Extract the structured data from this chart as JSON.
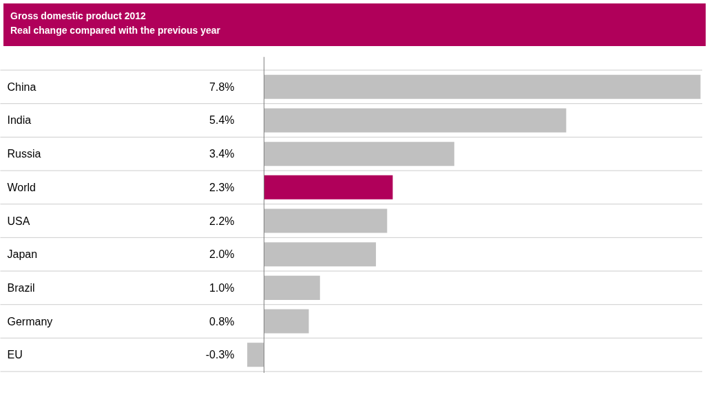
{
  "chart_data": {
    "type": "bar",
    "orientation": "horizontal",
    "title": "Gross domestic product 2012",
    "subtitle": "Real change compared with the previous year",
    "categories": [
      "China",
      "India",
      "Russia",
      "World",
      "USA",
      "Japan",
      "Brazil",
      "Germany",
      "EU"
    ],
    "values": [
      7.8,
      5.4,
      3.4,
      2.3,
      2.2,
      2.0,
      1.0,
      0.8,
      -0.3
    ],
    "colors": [
      "#c0c0c0",
      "#c0c0c0",
      "#c0c0c0",
      "#b0005a",
      "#c0c0c0",
      "#c0c0c0",
      "#c0c0c0",
      "#c0c0c0",
      "#c0c0c0"
    ],
    "value_labels": [
      "7.8%",
      "5.4%",
      "3.4%",
      "2.3%",
      "2.2%",
      "2.0%",
      "1.0%",
      "0.8%",
      "-0.3%"
    ]
  }
}
